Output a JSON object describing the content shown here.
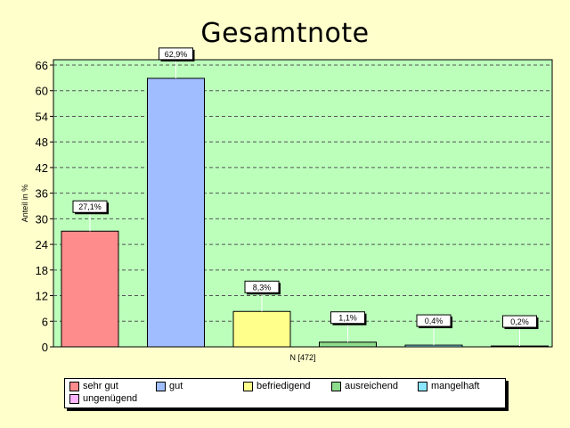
{
  "chart_data": {
    "type": "bar",
    "title": "Gesamtnote",
    "ylabel": "Anteil in %",
    "xlabel": "N [472]",
    "ylim": [
      0,
      66
    ],
    "yticks": [
      0,
      6,
      12,
      18,
      24,
      30,
      36,
      42,
      48,
      54,
      60,
      66
    ],
    "grid": true,
    "legend_position": "bottom",
    "categories": [
      "sehr gut",
      "gut",
      "befriedigend",
      "ausreichend",
      "mangelhaft",
      "ungenügend"
    ],
    "values": [
      27.1,
      62.9,
      8.3,
      1.1,
      0.4,
      0.2
    ],
    "data_labels": [
      "27,1%",
      "62,9%",
      "8,3%",
      "1,1%",
      "0,4%",
      "0,2%"
    ],
    "colors": [
      "#ff8c8c",
      "#a0beff",
      "#ffff8c",
      "#8cdc8c",
      "#8ce6ff",
      "#ffb4ff"
    ],
    "plot_background": "#bbffbb",
    "page_background": "#ffffcc"
  }
}
